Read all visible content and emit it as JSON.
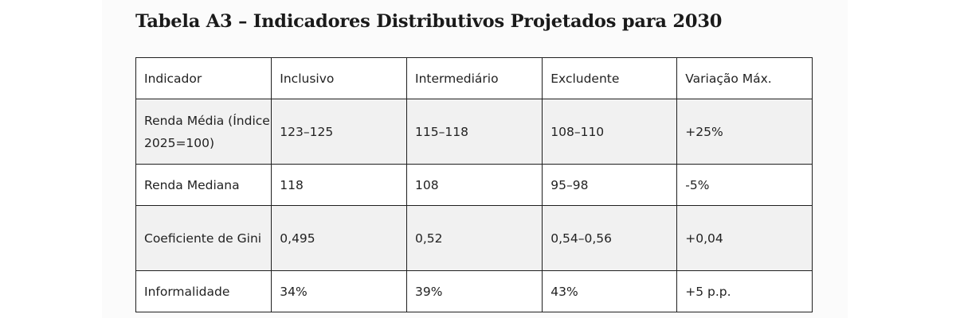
{
  "title": "Tabela A3 – Indicadores Distributivos Projetados para 2030",
  "table": {
    "headers": [
      "Indicador",
      "Inclusivo",
      "Intermediário",
      "Excludente",
      "Variação Máx."
    ],
    "rows": [
      [
        "Renda Média (Índice 2025=100)",
        "123–125",
        "115–118",
        "108–110",
        "+25%"
      ],
      [
        "Renda Mediana",
        "118",
        "108",
        "95–98",
        "-5%"
      ],
      [
        "Coeficiente de Gini",
        "0,495",
        "0,52",
        "0,54–0,56",
        "+0,04"
      ],
      [
        "Informalidade",
        "34%",
        "39%",
        "43%",
        "+5 p.p."
      ]
    ]
  }
}
